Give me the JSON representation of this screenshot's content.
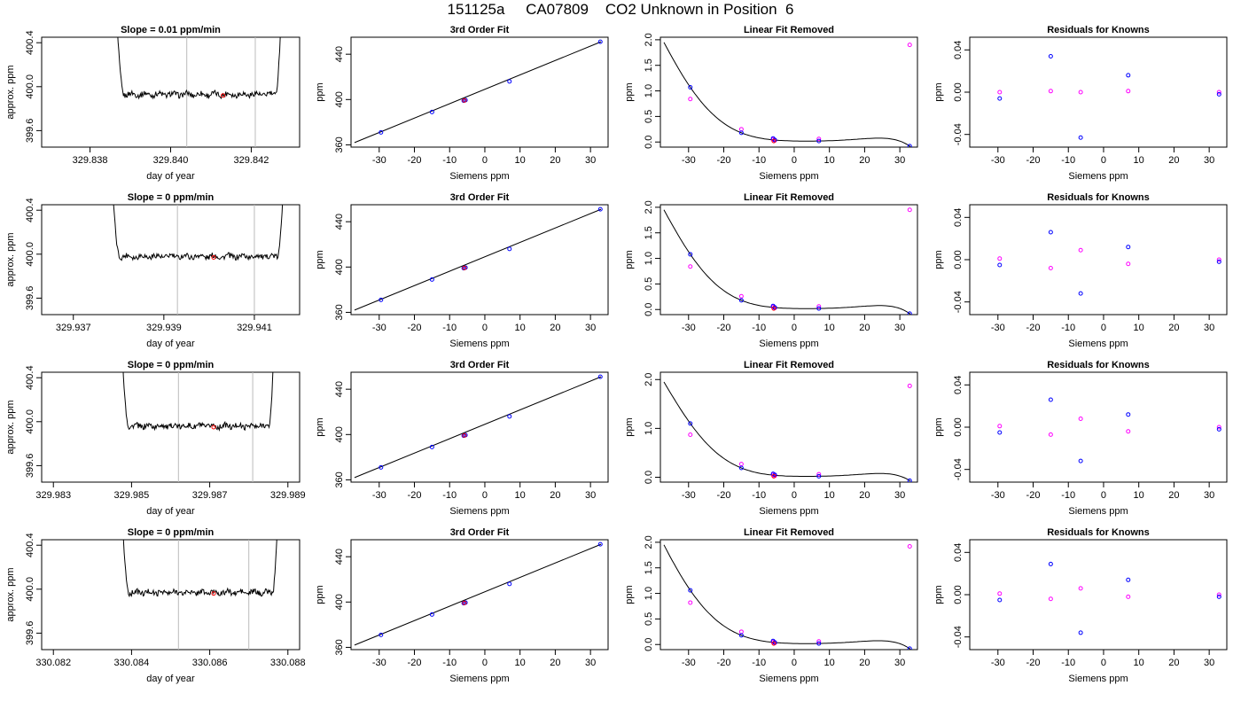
{
  "page": {
    "title": "151125a     CA07809    CO2 Unknown in Position  6"
  },
  "colors": {
    "line": "#000000",
    "grid": "#bbbbbb",
    "known": "#0000ff",
    "cubic": "#ff00ff",
    "unknown": "#ff0000"
  },
  "chart_data": [
    {
      "type": "line",
      "title": "Slope =  0.01  ppm/min",
      "xlabel": "day of year",
      "ylabel": "approx. ppm",
      "xlim": [
        329.8368,
        329.8432
      ],
      "ylim": [
        399.45,
        400.45
      ],
      "xticks": [
        329.838,
        329.84,
        329.842
      ],
      "xtick_labels": [
        "329.838",
        "329.840",
        "329.842"
      ],
      "yticks": [
        399.6,
        400.0,
        400.4
      ],
      "ytick_labels": [
        "399.6",
        "400.0",
        "400.4"
      ],
      "vlines": [
        329.8404,
        329.8421
      ],
      "base": 399.93,
      "left": 329.8386,
      "right": 329.8428,
      "highlight": {
        "x": 329.8413,
        "y": 399.92
      }
    },
    {
      "type": "scatter",
      "title": "3rd Order Fit",
      "xlabel": "Siemens ppm",
      "ylabel": "ppm",
      "xlim": [
        -38,
        35
      ],
      "ylim": [
        358,
        455
      ],
      "xticks": [
        -30,
        -20,
        -10,
        0,
        10,
        20,
        30
      ],
      "yticks": [
        360,
        400,
        440
      ],
      "fit_line": [
        [
          -37,
          362
        ],
        [
          33,
          451
        ]
      ],
      "points": [
        [
          -29.5,
          371
        ],
        [
          -15,
          389
        ],
        [
          -6,
          399
        ],
        [
          -5.5,
          399.5
        ],
        [
          7,
          416
        ],
        [
          32.8,
          451
        ]
      ],
      "unknown": {
        "x": -5.8,
        "y": 399.2
      }
    },
    {
      "type": "scatter",
      "title": "Linear Fit Removed",
      "xlabel": "Siemens ppm",
      "ylabel": "ppm",
      "xlim": [
        -38,
        35
      ],
      "ylim": [
        -0.1,
        2.05
      ],
      "xticks": [
        -30,
        -20,
        -10,
        0,
        10,
        20,
        30
      ],
      "yticks": [
        0.0,
        0.5,
        1.0,
        1.5,
        2.0
      ],
      "ytick_labels": [
        "0.0",
        "0.5",
        "1.0",
        "1.5",
        "2.0"
      ],
      "curve": "cubic",
      "known": [
        [
          -29.5,
          1.07
        ],
        [
          -15,
          0.18
        ],
        [
          -6,
          0.07
        ],
        [
          -5.5,
          0.04
        ],
        [
          7,
          0.02
        ],
        [
          32.8,
          -0.08
        ]
      ],
      "fit": [
        [
          -29.5,
          0.84
        ],
        [
          -15,
          0.25
        ],
        [
          -6,
          0.05
        ],
        [
          -5.5,
          0.03
        ],
        [
          7,
          0.06
        ],
        [
          32.8,
          1.9
        ]
      ],
      "unknown": {
        "x": -5.8,
        "y": 0.02
      }
    },
    {
      "type": "scatter",
      "title": "Residuals for Knowns",
      "xlabel": "Siemens ppm",
      "ylabel": "ppm",
      "xlim": [
        -38,
        35
      ],
      "ylim": [
        -0.052,
        0.052
      ],
      "xticks": [
        -30,
        -20,
        -10,
        0,
        10,
        20,
        30
      ],
      "yticks": [
        -0.04,
        0.0,
        0.04
      ],
      "ytick_labels": [
        "-0.04",
        "0.00",
        "0.04"
      ],
      "known": [
        [
          -29.5,
          -0.006
        ],
        [
          -15,
          0.034
        ],
        [
          -6.5,
          -0.043
        ],
        [
          7,
          0.016
        ],
        [
          32.8,
          -0.002
        ]
      ],
      "fit": [
        [
          -29.5,
          0.0
        ],
        [
          -15,
          0.001
        ],
        [
          -6.5,
          0.0
        ],
        [
          7,
          0.001
        ],
        [
          32.8,
          0.0
        ]
      ]
    },
    {
      "type": "line",
      "title": "Slope =  0  ppm/min",
      "xlabel": "day of year",
      "ylabel": "approx. ppm",
      "xlim": [
        329.9363,
        329.942
      ],
      "ylim": [
        399.45,
        400.45
      ],
      "xticks": [
        329.937,
        329.939,
        329.941
      ],
      "xtick_labels": [
        "329.937",
        "329.939",
        "329.941"
      ],
      "yticks": [
        399.6,
        400.0,
        400.4
      ],
      "ytick_labels": [
        "399.6",
        "400.0",
        "400.4"
      ],
      "vlines": [
        329.9393,
        329.941
      ],
      "base": 399.98,
      "left": 329.9378,
      "right": 329.9417,
      "highlight": {
        "x": 329.9401,
        "y": 399.97
      }
    },
    {
      "type": "scatter",
      "title": "3rd Order Fit",
      "xlabel": "Siemens ppm",
      "ylabel": "ppm",
      "xlim": [
        -38,
        35
      ],
      "ylim": [
        358,
        455
      ],
      "xticks": [
        -30,
        -20,
        -10,
        0,
        10,
        20,
        30
      ],
      "yticks": [
        360,
        400,
        440
      ],
      "fit_line": [
        [
          -37,
          362
        ],
        [
          33,
          451
        ]
      ],
      "points": [
        [
          -29.5,
          371
        ],
        [
          -15,
          389
        ],
        [
          -6,
          399
        ],
        [
          -5.5,
          399.5
        ],
        [
          7,
          416
        ],
        [
          32.8,
          451
        ]
      ],
      "unknown": {
        "x": -5.8,
        "y": 399.2
      }
    },
    {
      "type": "scatter",
      "title": "Linear Fit Removed",
      "xlabel": "Siemens ppm",
      "ylabel": "ppm",
      "xlim": [
        -38,
        35
      ],
      "ylim": [
        -0.1,
        2.05
      ],
      "xticks": [
        -30,
        -20,
        -10,
        0,
        10,
        20,
        30
      ],
      "yticks": [
        0.0,
        0.5,
        1.0,
        1.5,
        2.0
      ],
      "ytick_labels": [
        "0.0",
        "0.5",
        "1.0",
        "1.5",
        "2.0"
      ],
      "curve": "cubic",
      "known": [
        [
          -29.5,
          1.08
        ],
        [
          -15,
          0.18
        ],
        [
          -6,
          0.07
        ],
        [
          -5.5,
          0.04
        ],
        [
          7,
          0.02
        ],
        [
          32.8,
          -0.08
        ]
      ],
      "fit": [
        [
          -29.5,
          0.84
        ],
        [
          -15,
          0.26
        ],
        [
          -6,
          0.05
        ],
        [
          -5.5,
          0.03
        ],
        [
          7,
          0.06
        ],
        [
          32.8,
          1.95
        ]
      ],
      "unknown": {
        "x": -5.8,
        "y": 0.02
      }
    },
    {
      "type": "scatter",
      "title": "Residuals for Knowns",
      "xlabel": "Siemens ppm",
      "ylabel": "ppm",
      "xlim": [
        -38,
        35
      ],
      "ylim": [
        -0.052,
        0.052
      ],
      "xticks": [
        -30,
        -20,
        -10,
        0,
        10,
        20,
        30
      ],
      "yticks": [
        -0.04,
        0.0,
        0.04
      ],
      "ytick_labels": [
        "-0.04",
        "0.00",
        "0.04"
      ],
      "known": [
        [
          -29.5,
          -0.005
        ],
        [
          -15,
          0.026
        ],
        [
          -6.5,
          -0.032
        ],
        [
          7,
          0.012
        ],
        [
          32.8,
          -0.002
        ]
      ],
      "fit": [
        [
          -29.5,
          0.001
        ],
        [
          -15,
          -0.008
        ],
        [
          -6.5,
          0.009
        ],
        [
          7,
          -0.004
        ],
        [
          32.8,
          0.0
        ]
      ]
    },
    {
      "type": "line",
      "title": "Slope =  0  ppm/min",
      "xlabel": "day of year",
      "ylabel": "approx. ppm",
      "xlim": [
        329.9827,
        329.9893
      ],
      "ylim": [
        399.45,
        400.45
      ],
      "xticks": [
        329.983,
        329.985,
        329.987,
        329.989
      ],
      "xtick_labels": [
        "329.983",
        "329.985",
        "329.987",
        "329.989"
      ],
      "yticks": [
        399.6,
        400.0,
        400.4
      ],
      "ytick_labels": [
        "399.6",
        "400.0",
        "400.4"
      ],
      "vlines": [
        329.9862,
        329.9881
      ],
      "base": 399.96,
      "left": 329.9847,
      "right": 329.9887,
      "highlight": {
        "x": 329.9871,
        "y": 399.95
      }
    },
    {
      "type": "scatter",
      "title": "3rd Order Fit",
      "xlabel": "Siemens ppm",
      "ylabel": "ppm",
      "xlim": [
        -38,
        35
      ],
      "ylim": [
        358,
        455
      ],
      "xticks": [
        -30,
        -20,
        -10,
        0,
        10,
        20,
        30
      ],
      "yticks": [
        360,
        400,
        440
      ],
      "fit_line": [
        [
          -37,
          362
        ],
        [
          33,
          451
        ]
      ],
      "points": [
        [
          -29.5,
          371
        ],
        [
          -15,
          389
        ],
        [
          -6,
          399
        ],
        [
          -5.5,
          399.5
        ],
        [
          7,
          416
        ],
        [
          32.8,
          451
        ]
      ],
      "unknown": {
        "x": -5.8,
        "y": 399.2
      }
    },
    {
      "type": "scatter",
      "title": "Linear Fit Removed",
      "xlabel": "Siemens ppm",
      "ylabel": "ppm",
      "xlim": [
        -38,
        35
      ],
      "ylim": [
        -0.1,
        2.15
      ],
      "xticks": [
        -30,
        -20,
        -10,
        0,
        10,
        20,
        30
      ],
      "yticks": [
        0.0,
        1.0,
        2.0
      ],
      "ytick_labels": [
        "0.0",
        "1.0",
        "2.0"
      ],
      "curve": "cubic",
      "known": [
        [
          -29.5,
          1.1
        ],
        [
          -15,
          0.19
        ],
        [
          -6,
          0.07
        ],
        [
          -5.5,
          0.05
        ],
        [
          7,
          0.02
        ],
        [
          32.8,
          -0.07
        ]
      ],
      "fit": [
        [
          -29.5,
          0.87
        ],
        [
          -15,
          0.27
        ],
        [
          -6,
          0.05
        ],
        [
          -5.5,
          0.03
        ],
        [
          7,
          0.06
        ],
        [
          32.8,
          1.87
        ]
      ],
      "unknown": {
        "x": -5.8,
        "y": 0.02
      }
    },
    {
      "type": "scatter",
      "title": "Residuals for Knowns",
      "xlabel": "Siemens ppm",
      "ylabel": "ppm",
      "xlim": [
        -38,
        35
      ],
      "ylim": [
        -0.052,
        0.052
      ],
      "xticks": [
        -30,
        -20,
        -10,
        0,
        10,
        20,
        30
      ],
      "yticks": [
        -0.04,
        0.0,
        0.04
      ],
      "ytick_labels": [
        "-0.04",
        "0.00",
        "0.04"
      ],
      "known": [
        [
          -29.5,
          -0.005
        ],
        [
          -15,
          0.026
        ],
        [
          -6.5,
          -0.032
        ],
        [
          7,
          0.012
        ],
        [
          32.8,
          -0.002
        ]
      ],
      "fit": [
        [
          -29.5,
          0.001
        ],
        [
          -15,
          -0.007
        ],
        [
          -6.5,
          0.008
        ],
        [
          7,
          -0.004
        ],
        [
          32.8,
          0.0
        ]
      ]
    },
    {
      "type": "line",
      "title": "Slope =  0  ppm/min",
      "xlabel": "day of year",
      "ylabel": "approx. ppm",
      "xlim": [
        330.0817,
        330.0883
      ],
      "ylim": [
        399.45,
        400.45
      ],
      "xticks": [
        330.082,
        330.084,
        330.086,
        330.088
      ],
      "xtick_labels": [
        "330.082",
        "330.084",
        "330.086",
        "330.088"
      ],
      "yticks": [
        399.6,
        400.0,
        400.4
      ],
      "ytick_labels": [
        "399.6",
        "400.0",
        "400.4"
      ],
      "vlines": [
        330.0852,
        330.087
      ],
      "base": 399.97,
      "left": 330.0837,
      "right": 330.0878,
      "highlight": {
        "x": 330.0861,
        "y": 399.96
      }
    },
    {
      "type": "scatter",
      "title": "3rd Order Fit",
      "xlabel": "Siemens ppm",
      "ylabel": "ppm",
      "xlim": [
        -38,
        35
      ],
      "ylim": [
        358,
        455
      ],
      "xticks": [
        -30,
        -20,
        -10,
        0,
        10,
        20,
        30
      ],
      "yticks": [
        360,
        400,
        440
      ],
      "fit_line": [
        [
          -37,
          362
        ],
        [
          33,
          451
        ]
      ],
      "points": [
        [
          -29.5,
          371
        ],
        [
          -15,
          389
        ],
        [
          -6,
          399
        ],
        [
          -5.5,
          399.5
        ],
        [
          7,
          416
        ],
        [
          32.8,
          451
        ]
      ],
      "unknown": {
        "x": -5.8,
        "y": 399.2
      }
    },
    {
      "type": "scatter",
      "title": "Linear Fit Removed",
      "xlabel": "Siemens ppm",
      "ylabel": "ppm",
      "xlim": [
        -38,
        35
      ],
      "ylim": [
        -0.1,
        2.05
      ],
      "xticks": [
        -30,
        -20,
        -10,
        0,
        10,
        20,
        30
      ],
      "yticks": [
        0.0,
        0.5,
        1.0,
        1.5,
        2.0
      ],
      "ytick_labels": [
        "0.0",
        "0.5",
        "1.0",
        "1.5",
        "2.0"
      ],
      "curve": "cubic",
      "known": [
        [
          -29.5,
          1.06
        ],
        [
          -15,
          0.18
        ],
        [
          -6,
          0.07
        ],
        [
          -5.5,
          0.04
        ],
        [
          7,
          0.02
        ],
        [
          32.8,
          -0.08
        ]
      ],
      "fit": [
        [
          -29.5,
          0.82
        ],
        [
          -15,
          0.25
        ],
        [
          -6,
          0.05
        ],
        [
          -5.5,
          0.03
        ],
        [
          7,
          0.06
        ],
        [
          32.8,
          1.92
        ]
      ],
      "unknown": {
        "x": -5.8,
        "y": 0.02
      }
    },
    {
      "type": "scatter",
      "title": "Residuals for Knowns",
      "xlabel": "Siemens ppm",
      "ylabel": "ppm",
      "xlim": [
        -38,
        35
      ],
      "ylim": [
        -0.052,
        0.052
      ],
      "xticks": [
        -30,
        -20,
        -10,
        0,
        10,
        20,
        30
      ],
      "yticks": [
        -0.04,
        0.0,
        0.04
      ],
      "ytick_labels": [
        "-0.04",
        "0.00",
        "0.04"
      ],
      "known": [
        [
          -29.5,
          -0.005
        ],
        [
          -15,
          0.029
        ],
        [
          -6.5,
          -0.036
        ],
        [
          7,
          0.014
        ],
        [
          32.8,
          -0.002
        ]
      ],
      "fit": [
        [
          -29.5,
          0.001
        ],
        [
          -15,
          -0.004
        ],
        [
          -6.5,
          0.006
        ],
        [
          7,
          -0.002
        ],
        [
          32.8,
          0.0
        ]
      ]
    }
  ]
}
